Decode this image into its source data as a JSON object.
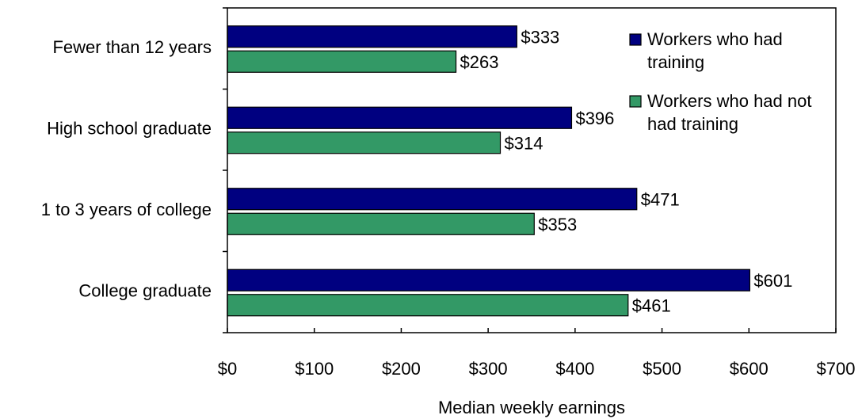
{
  "chart_data": {
    "type": "hbar",
    "categories": [
      "Fewer than 12 years",
      "High school graduate",
      "1 to 3 years of college",
      "College graduate"
    ],
    "series": [
      {
        "name": "Workers who had training",
        "color": "#000080",
        "values": [
          333,
          396,
          471,
          601
        ],
        "value_labels": [
          "$333",
          "$396",
          "$471",
          "$601"
        ]
      },
      {
        "name": "Workers who had not had training",
        "color": "#339966",
        "values": [
          263,
          314,
          353,
          461
        ],
        "value_labels": [
          "$263",
          "$314",
          "$353",
          "$461"
        ]
      }
    ],
    "xlabel": "Median weekly earnings",
    "xlim": [
      0,
      700
    ],
    "xticks": [
      {
        "value": 0,
        "label": "$0"
      },
      {
        "value": 100,
        "label": "$100"
      },
      {
        "value": 200,
        "label": "$200"
      },
      {
        "value": 300,
        "label": "$300"
      },
      {
        "value": 400,
        "label": "$400"
      },
      {
        "value": 500,
        "label": "$500"
      },
      {
        "value": 600,
        "label": "$600"
      },
      {
        "value": 700,
        "label": "$700"
      }
    ],
    "legend": "top-right"
  }
}
